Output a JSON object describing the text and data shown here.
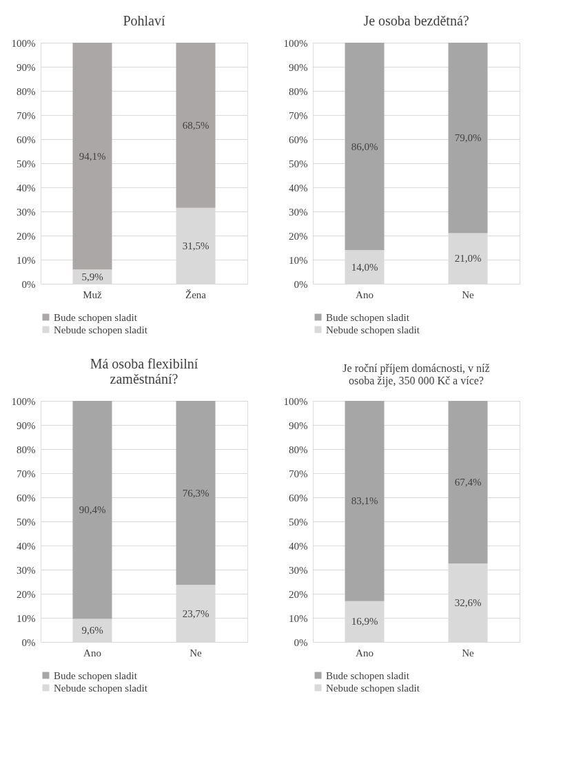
{
  "chart_data": [
    {
      "type": "bar",
      "title": "Pohlaví",
      "categories": [
        "Muž",
        "Žena"
      ],
      "stacked": true,
      "ylim": [
        0,
        100
      ],
      "yticks": [
        {
          "value": 0,
          "label": "0%"
        },
        {
          "value": 10,
          "label": "10%"
        },
        {
          "value": 20,
          "label": "20%"
        },
        {
          "value": 30,
          "label": "30%"
        },
        {
          "value": 40,
          "label": "40%"
        },
        {
          "value": 50,
          "label": "50%"
        },
        {
          "value": 60,
          "label": "60%"
        },
        {
          "value": 70,
          "label": "70%"
        },
        {
          "value": 80,
          "label": "80%"
        },
        {
          "value": 90,
          "label": "90%"
        },
        {
          "value": 100,
          "label": "100%"
        }
      ],
      "grid": "y",
      "legend": "bottom",
      "series": [
        {
          "name": "Nebude schopen sladit",
          "color": "#d9d9d9",
          "values": [
            5.9,
            31.5
          ],
          "value_labels": [
            "5,9%",
            "31,5%"
          ]
        },
        {
          "name": "Bude schopen sladit",
          "color": "#aba7a7",
          "values": [
            94.1,
            68.5
          ],
          "value_labels": [
            "94,1%",
            "68,5%"
          ]
        }
      ]
    },
    {
      "type": "bar",
      "title": "Je osoba bezdětná?",
      "categories": [
        "Ano",
        "Ne"
      ],
      "stacked": true,
      "ylim": [
        0,
        100
      ],
      "yticks": [
        {
          "value": 0,
          "label": "0%"
        },
        {
          "value": 10,
          "label": "10%"
        },
        {
          "value": 20,
          "label": "20%"
        },
        {
          "value": 30,
          "label": "30%"
        },
        {
          "value": 40,
          "label": "40%"
        },
        {
          "value": 50,
          "label": "50%"
        },
        {
          "value": 60,
          "label": "60%"
        },
        {
          "value": 70,
          "label": "70%"
        },
        {
          "value": 80,
          "label": "80%"
        },
        {
          "value": 90,
          "label": "90%"
        },
        {
          "value": 100,
          "label": "100%"
        }
      ],
      "grid": "y",
      "legend": "bottom",
      "series": [
        {
          "name": "Nebude schopen sladit",
          "color": "#d9d9d9",
          "values": [
            14.0,
            21.0
          ],
          "value_labels": [
            "14,0%",
            "21,0%"
          ]
        },
        {
          "name": "Bude schopen sladit",
          "color": "#a6a6a6",
          "values": [
            86.0,
            79.0
          ],
          "value_labels": [
            "86,0%",
            "79,0%"
          ]
        }
      ]
    },
    {
      "type": "bar",
      "title": "Má osoba flexibilní zaměstnání?",
      "categories": [
        "Ano",
        "Ne"
      ],
      "stacked": true,
      "ylim": [
        0,
        100
      ],
      "yticks": [
        {
          "value": 0,
          "label": "0%"
        },
        {
          "value": 10,
          "label": "10%"
        },
        {
          "value": 20,
          "label": "20%"
        },
        {
          "value": 30,
          "label": "30%"
        },
        {
          "value": 40,
          "label": "40%"
        },
        {
          "value": 50,
          "label": "50%"
        },
        {
          "value": 60,
          "label": "60%"
        },
        {
          "value": 70,
          "label": "70%"
        },
        {
          "value": 80,
          "label": "80%"
        },
        {
          "value": 90,
          "label": "90%"
        },
        {
          "value": 100,
          "label": "100%"
        }
      ],
      "grid": "y",
      "legend": "bottom",
      "series": [
        {
          "name": "Nebude schopen sladit",
          "color": "#d9d9d9",
          "values": [
            9.6,
            23.7
          ],
          "value_labels": [
            "9,6%",
            "23,7%"
          ]
        },
        {
          "name": "Bude schopen sladit",
          "color": "#a6a6a6",
          "values": [
            90.4,
            76.3
          ],
          "value_labels": [
            "90,4%",
            "76,3%"
          ]
        }
      ]
    },
    {
      "type": "bar",
      "title": "Je roční příjem domácnosti, v níž osoba žije, 350 000 Kč a více?",
      "categories": [
        "Ano",
        "Ne"
      ],
      "stacked": true,
      "ylim": [
        0,
        100
      ],
      "yticks": [
        {
          "value": 0,
          "label": "0%"
        },
        {
          "value": 10,
          "label": "10%"
        },
        {
          "value": 20,
          "label": "20%"
        },
        {
          "value": 30,
          "label": "30%"
        },
        {
          "value": 40,
          "label": "40%"
        },
        {
          "value": 50,
          "label": "50%"
        },
        {
          "value": 60,
          "label": "60%"
        },
        {
          "value": 70,
          "label": "70%"
        },
        {
          "value": 80,
          "label": "80%"
        },
        {
          "value": 90,
          "label": "90%"
        },
        {
          "value": 100,
          "label": "100%"
        }
      ],
      "grid": "y",
      "legend": "bottom",
      "series": [
        {
          "name": "Nebude schopen sladit",
          "color": "#d9d9d9",
          "values": [
            16.9,
            32.6
          ],
          "value_labels": [
            "16,9%",
            "32,6%"
          ]
        },
        {
          "name": "Bude schopen sladit",
          "color": "#a6a6a6",
          "values": [
            83.1,
            67.4
          ],
          "value_labels": [
            "83,1%",
            "67,4%"
          ]
        }
      ]
    }
  ]
}
